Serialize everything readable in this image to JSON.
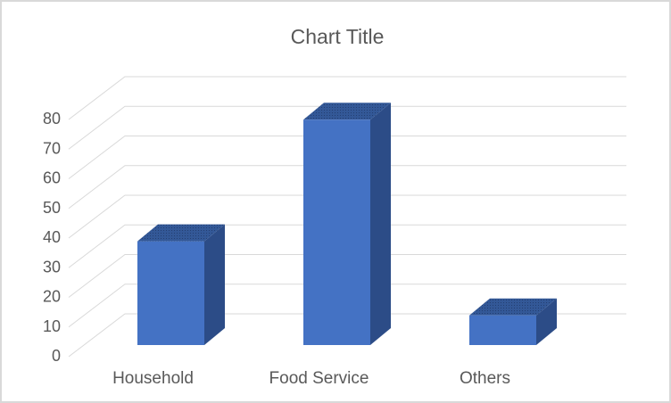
{
  "chart_data": {
    "type": "bar",
    "variant": "3d-clustered-column",
    "title": "Chart Title",
    "categories": [
      "Household",
      "Food Service",
      "Others"
    ],
    "values": [
      35,
      76,
      10
    ],
    "xlabel": "",
    "ylabel": "",
    "ylim": [
      0,
      80
    ],
    "yticks": [
      0,
      10,
      20,
      30,
      40,
      50,
      60,
      70,
      80
    ],
    "grid": true,
    "legend": false,
    "layout_hints": {
      "projection": "oblique-3d",
      "gridlines": "left-wall-diagonal-then-back-wall-horizontal"
    },
    "colors": {
      "bar_front": "#4472c4",
      "bar_side": "#2c4c87",
      "bar_top": "#335897",
      "bar_top_dots": "#243f72",
      "gridline": "#d9d9d9",
      "text": "#595959",
      "chart_border": "#d9d9d9",
      "background": "#ffffff"
    }
  }
}
